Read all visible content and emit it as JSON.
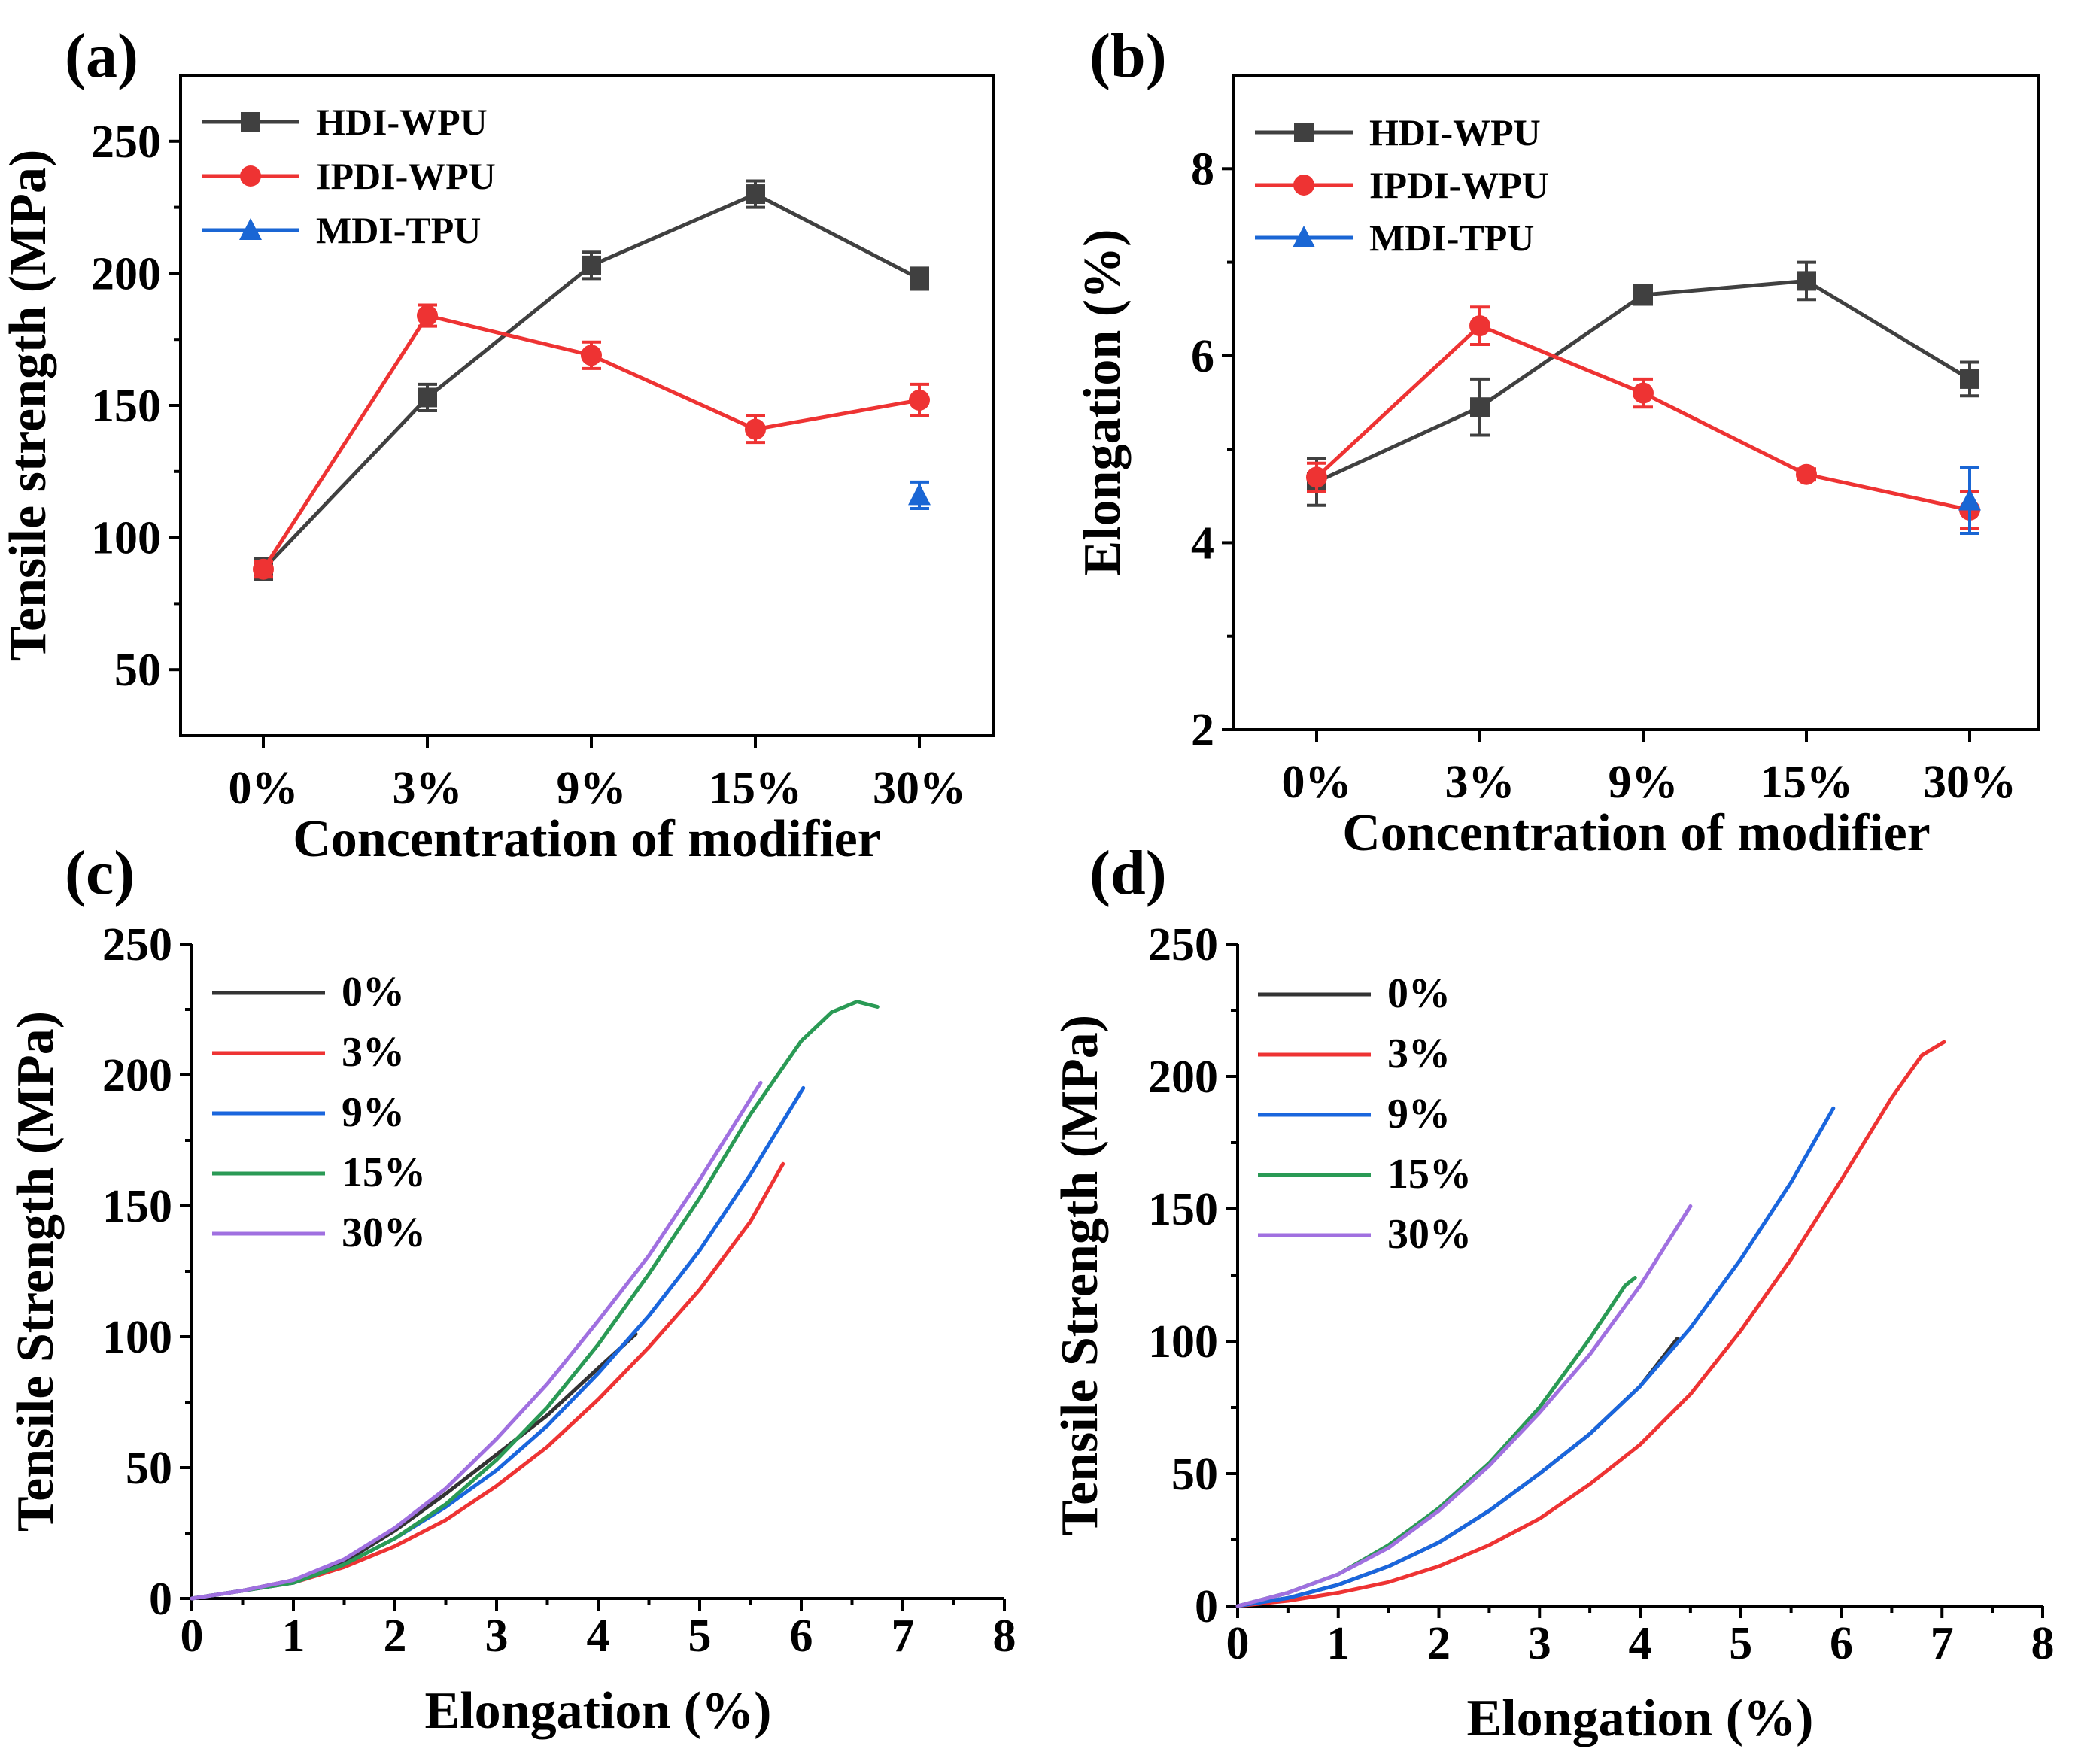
{
  "colors": {
    "hdi": "#404040",
    "ipdi": "#ee3333",
    "mdi": "#1a66d4",
    "c0": "#333333",
    "c3": "#ee3333",
    "c9": "#1a66dd",
    "c15": "#2a9a55",
    "c30": "#a070e0"
  },
  "chart_data": [
    {
      "id": "a",
      "panel_label": "(a)",
      "type": "line",
      "title": "",
      "xlabel": "Concentration of modifier",
      "ylabel": "Tensile strength (MPa)",
      "categories": [
        "0%",
        "3%",
        "9%",
        "15%",
        "30%"
      ],
      "ylim": [
        25,
        275
      ],
      "yticks": [
        50,
        100,
        150,
        200,
        250
      ],
      "legend_position": "top-left",
      "series": [
        {
          "name": "HDI-WPU",
          "color": "hdi",
          "marker": "square",
          "values": [
            88,
            153,
            203,
            230,
            198
          ],
          "errors": [
            4,
            5,
            5,
            5,
            4
          ]
        },
        {
          "name": "IPDI-WPU",
          "color": "ipdi",
          "marker": "circle",
          "values": [
            88,
            184,
            169,
            141,
            152
          ],
          "errors": [
            3,
            4,
            5,
            5,
            6
          ]
        },
        {
          "name": "MDI-TPU",
          "color": "mdi",
          "marker": "triangle",
          "values": [
            null,
            null,
            null,
            null,
            116
          ],
          "errors": [
            0,
            0,
            0,
            0,
            5
          ]
        }
      ]
    },
    {
      "id": "b",
      "panel_label": "(b)",
      "type": "line",
      "title": "",
      "xlabel": "Concentration of modifier",
      "ylabel": "Elongation (%)",
      "categories": [
        "0%",
        "3%",
        "9%",
        "15%",
        "30%"
      ],
      "ylim": [
        2,
        9
      ],
      "yticks": [
        2,
        4,
        6,
        8
      ],
      "legend_position": "top-left",
      "series": [
        {
          "name": "HDI-WPU",
          "color": "hdi",
          "marker": "square",
          "values": [
            4.65,
            5.45,
            6.65,
            6.8,
            5.75
          ],
          "errors": [
            0.25,
            0.3,
            0.1,
            0.2,
            0.18
          ]
        },
        {
          "name": "IPDI-WPU",
          "color": "ipdi",
          "marker": "circle",
          "values": [
            4.7,
            6.32,
            5.6,
            4.73,
            4.35
          ],
          "errors": [
            0.15,
            0.2,
            0.15,
            0.06,
            0.2
          ]
        },
        {
          "name": "MDI-TPU",
          "color": "mdi",
          "marker": "triangle",
          "values": [
            null,
            null,
            null,
            null,
            4.45
          ],
          "errors": [
            0,
            0,
            0,
            0,
            0.35
          ]
        }
      ]
    },
    {
      "id": "c",
      "panel_label": "(c)",
      "type": "line",
      "title": "",
      "xlabel": "Elongation (%)",
      "ylabel": "Tensile Strength (MPa)",
      "xlim": [
        0,
        8
      ],
      "ylim": [
        0,
        250
      ],
      "xticks": [
        0,
        1,
        2,
        3,
        4,
        5,
        6,
        7,
        8
      ],
      "yticks": [
        0,
        50,
        100,
        150,
        200,
        250
      ],
      "legend_position": "top-left",
      "series": [
        {
          "name": "0%",
          "color": "c0",
          "x": [
            0,
            0.5,
            1,
            1.5,
            2,
            2.5,
            3,
            3.5,
            4,
            4.37
          ],
          "y": [
            0,
            3,
            7,
            14,
            26,
            40,
            55,
            70,
            88,
            101
          ]
        },
        {
          "name": "3%",
          "color": "c3",
          "x": [
            0,
            0.5,
            1,
            1.5,
            2,
            2.5,
            3,
            3.5,
            4,
            4.5,
            5,
            5.5,
            5.82
          ],
          "y": [
            0,
            3,
            6,
            12,
            20,
            30,
            43,
            58,
            76,
            96,
            118,
            144,
            166
          ]
        },
        {
          "name": "9%",
          "color": "c9",
          "x": [
            0,
            0.5,
            1,
            1.5,
            2,
            2.5,
            3,
            3.5,
            4,
            4.5,
            5,
            5.5,
            6.02
          ],
          "y": [
            0,
            3,
            6,
            13,
            23,
            35,
            49,
            66,
            86,
            108,
            133,
            162,
            195
          ]
        },
        {
          "name": "15%",
          "color": "c15",
          "x": [
            0,
            0.5,
            1,
            1.5,
            2,
            2.5,
            3,
            3.5,
            4,
            4.5,
            5,
            5.5,
            6,
            6.3,
            6.55,
            6.75
          ],
          "y": [
            0,
            3,
            6,
            13,
            23,
            36,
            53,
            73,
            97,
            124,
            153,
            185,
            213,
            224,
            228,
            226
          ]
        },
        {
          "name": "30%",
          "color": "c30",
          "x": [
            0,
            0.5,
            1,
            1.5,
            2,
            2.5,
            3,
            3.5,
            4,
            4.5,
            5,
            5.6
          ],
          "y": [
            0,
            3,
            7,
            15,
            27,
            42,
            61,
            82,
            106,
            131,
            160,
            197
          ]
        }
      ]
    },
    {
      "id": "d",
      "panel_label": "(d)",
      "type": "line",
      "title": "",
      "xlabel": "Elongation (%)",
      "ylabel": "Tensile Strength (MPa)",
      "xlim": [
        0,
        8
      ],
      "ylim": [
        0,
        250
      ],
      "xticks": [
        0,
        1,
        2,
        3,
        4,
        5,
        6,
        7,
        8
      ],
      "yticks": [
        0,
        50,
        100,
        150,
        200,
        250
      ],
      "legend_position": "top-left",
      "series": [
        {
          "name": "0%",
          "color": "c0",
          "x": [
            0,
            0.5,
            1,
            1.5,
            2,
            2.5,
            3,
            3.5,
            4,
            4.37
          ],
          "y": [
            0,
            3,
            8,
            15,
            24,
            36,
            50,
            65,
            83,
            101
          ]
        },
        {
          "name": "3%",
          "color": "c3",
          "x": [
            0,
            0.5,
            1,
            1.5,
            2,
            2.5,
            3,
            3.5,
            4,
            4.5,
            5,
            5.5,
            6,
            6.5,
            6.8,
            7.02
          ],
          "y": [
            0,
            2,
            5,
            9,
            15,
            23,
            33,
            46,
            61,
            80,
            104,
            131,
            161,
            192,
            208,
            213
          ]
        },
        {
          "name": "9%",
          "color": "c9",
          "x": [
            0,
            0.5,
            1,
            1.5,
            2,
            2.5,
            3,
            3.5,
            4,
            4.5,
            5,
            5.5,
            5.92
          ],
          "y": [
            0,
            3,
            8,
            15,
            24,
            36,
            50,
            65,
            83,
            105,
            131,
            160,
            188
          ]
        },
        {
          "name": "15%",
          "color": "c15",
          "x": [
            0,
            0.5,
            1,
            1.5,
            2,
            2.5,
            3,
            3.5,
            3.85,
            3.95
          ],
          "y": [
            0,
            5,
            12,
            23,
            37,
            54,
            75,
            101,
            121,
            124
          ]
        },
        {
          "name": "30%",
          "color": "c30",
          "x": [
            0,
            0.5,
            1,
            1.5,
            2,
            2.5,
            3,
            3.5,
            4,
            4.5
          ],
          "y": [
            0,
            5,
            12,
            22,
            36,
            53,
            73,
            95,
            121,
            151
          ]
        }
      ]
    }
  ]
}
